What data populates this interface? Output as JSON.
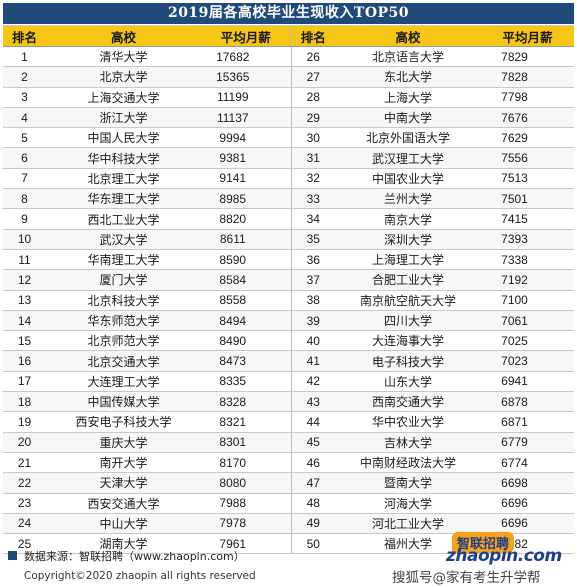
{
  "title": "2019届各高校毕业生现收入TOP50",
  "headers": {
    "rank": "排名",
    "school": "高校",
    "salary": "平均月薪"
  },
  "rows": [
    {
      "left": {
        "rank": "1",
        "school": "清华大学",
        "salary": "17682"
      },
      "right": {
        "rank": "26",
        "school": "北京语言大学",
        "salary": "7829"
      }
    },
    {
      "left": {
        "rank": "2",
        "school": "北京大学",
        "salary": "15365"
      },
      "right": {
        "rank": "27",
        "school": "东北大学",
        "salary": "7828"
      }
    },
    {
      "left": {
        "rank": "3",
        "school": "上海交通大学",
        "salary": "11199"
      },
      "right": {
        "rank": "28",
        "school": "上海大学",
        "salary": "7798"
      }
    },
    {
      "left": {
        "rank": "4",
        "school": "浙江大学",
        "salary": "11137"
      },
      "right": {
        "rank": "29",
        "school": "中南大学",
        "salary": "7676"
      }
    },
    {
      "left": {
        "rank": "5",
        "school": "中国人民大学",
        "salary": "9994"
      },
      "right": {
        "rank": "30",
        "school": "北京外国语大学",
        "salary": "7629"
      }
    },
    {
      "left": {
        "rank": "6",
        "school": "华中科技大学",
        "salary": "9381"
      },
      "right": {
        "rank": "31",
        "school": "武汉理工大学",
        "salary": "7556"
      }
    },
    {
      "left": {
        "rank": "7",
        "school": "北京理工大学",
        "salary": "9141"
      },
      "right": {
        "rank": "32",
        "school": "中国农业大学",
        "salary": "7513"
      }
    },
    {
      "left": {
        "rank": "8",
        "school": "华东理工大学",
        "salary": "8985"
      },
      "right": {
        "rank": "33",
        "school": "兰州大学",
        "salary": "7501"
      }
    },
    {
      "left": {
        "rank": "9",
        "school": "西北工业大学",
        "salary": "8820"
      },
      "right": {
        "rank": "34",
        "school": "南京大学",
        "salary": "7415"
      }
    },
    {
      "left": {
        "rank": "10",
        "school": "武汉大学",
        "salary": "8611"
      },
      "right": {
        "rank": "35",
        "school": "深圳大学",
        "salary": "7393"
      }
    },
    {
      "left": {
        "rank": "11",
        "school": "华南理工大学",
        "salary": "8590"
      },
      "right": {
        "rank": "36",
        "school": "上海理工大学",
        "salary": "7338"
      }
    },
    {
      "left": {
        "rank": "12",
        "school": "厦门大学",
        "salary": "8584"
      },
      "right": {
        "rank": "37",
        "school": "合肥工业大学",
        "salary": "7192"
      }
    },
    {
      "left": {
        "rank": "13",
        "school": "北京科技大学",
        "salary": "8558"
      },
      "right": {
        "rank": "38",
        "school": "南京航空航天大学",
        "salary": "7100"
      }
    },
    {
      "left": {
        "rank": "14",
        "school": "华东师范大学",
        "salary": "8494"
      },
      "right": {
        "rank": "39",
        "school": "四川大学",
        "salary": "7061"
      }
    },
    {
      "left": {
        "rank": "15",
        "school": "北京师范大学",
        "salary": "8490"
      },
      "right": {
        "rank": "40",
        "school": "大连海事大学",
        "salary": "7025"
      }
    },
    {
      "left": {
        "rank": "16",
        "school": "北京交通大学",
        "salary": "8473"
      },
      "right": {
        "rank": "41",
        "school": "电子科技大学",
        "salary": "7023"
      }
    },
    {
      "left": {
        "rank": "17",
        "school": "大连理工大学",
        "salary": "8335"
      },
      "right": {
        "rank": "42",
        "school": "山东大学",
        "salary": "6941"
      }
    },
    {
      "left": {
        "rank": "18",
        "school": "中国传媒大学",
        "salary": "8328"
      },
      "right": {
        "rank": "43",
        "school": "西南交通大学",
        "salary": "6878"
      }
    },
    {
      "left": {
        "rank": "19",
        "school": "西安电子科技大学",
        "salary": "8321"
      },
      "right": {
        "rank": "44",
        "school": "华中农业大学",
        "salary": "6871"
      }
    },
    {
      "left": {
        "rank": "20",
        "school": "重庆大学",
        "salary": "8301"
      },
      "right": {
        "rank": "45",
        "school": "吉林大学",
        "salary": "6779"
      }
    },
    {
      "left": {
        "rank": "21",
        "school": "南开大学",
        "salary": "8170"
      },
      "right": {
        "rank": "46",
        "school": "中南财经政法大学",
        "salary": "6774"
      }
    },
    {
      "left": {
        "rank": "22",
        "school": "天津大学",
        "salary": "8080"
      },
      "right": {
        "rank": "47",
        "school": "暨南大学",
        "salary": "6698"
      }
    },
    {
      "left": {
        "rank": "23",
        "school": "西安交通大学",
        "salary": "7988"
      },
      "right": {
        "rank": "48",
        "school": "河海大学",
        "salary": "6696"
      }
    },
    {
      "left": {
        "rank": "24",
        "school": "中山大学",
        "salary": "7978"
      },
      "right": {
        "rank": "49",
        "school": "河北工业大学",
        "salary": "6696"
      }
    },
    {
      "left": {
        "rank": "25",
        "school": "湖南大学",
        "salary": "7961"
      },
      "right": {
        "rank": "50",
        "school": "福州大学",
        "salary": "6682"
      }
    }
  ],
  "footer": {
    "source": "数据来源：智联招聘（www.zhaopin.com）",
    "copyright": "Copyright©2020 zhaopin all rights reserved",
    "logo_badge": "智联招聘",
    "logo_brand": "zhaopin.com",
    "watermark": "搜狐号@家有考生升学帮"
  },
  "colors": {
    "title_bg": "#1f4a7a",
    "header_bg": "#f5c518",
    "brand_blue": "#1f3f8a",
    "brand_orange": "#f7a21b"
  }
}
